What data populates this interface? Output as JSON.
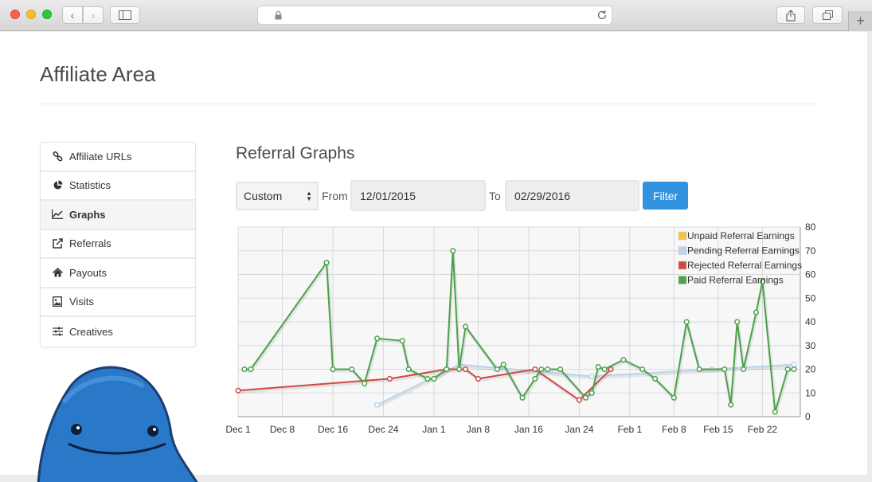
{
  "page": {
    "title": "Affiliate Area",
    "section_title": "Referral Graphs"
  },
  "nav": {
    "items": [
      {
        "label": "Affiliate URLs",
        "icon": "link-icon"
      },
      {
        "label": "Statistics",
        "icon": "pie-chart-icon"
      },
      {
        "label": "Graphs",
        "icon": "line-chart-icon",
        "active": true
      },
      {
        "label": "Referrals",
        "icon": "external-link-icon"
      },
      {
        "label": "Payouts",
        "icon": "home-icon"
      },
      {
        "label": "Visits",
        "icon": "image-icon"
      },
      {
        "label": "Creatives",
        "icon": "sliders-icon"
      }
    ]
  },
  "filter": {
    "range_value": "Custom",
    "from_label": "From",
    "from_value": "12/01/2015",
    "to_label": "To",
    "to_value": "02/29/2016",
    "button_label": "Filter",
    "button_color": "#3192e0"
  },
  "chart_data": {
    "type": "line",
    "x_ticks": [
      "Dec 1",
      "Dec 8",
      "Dec 16",
      "Dec 24",
      "Jan 1",
      "Jan 8",
      "Jan 16",
      "Jan 24",
      "Feb 1",
      "Feb 8",
      "Feb 15",
      "Feb 22"
    ],
    "x_tick_days": [
      0,
      7,
      15,
      23,
      31,
      38,
      46,
      54,
      62,
      69,
      76,
      83
    ],
    "x_range_days": [
      0,
      89
    ],
    "ylim": [
      0,
      80
    ],
    "y_ticks": [
      0,
      10,
      20,
      30,
      40,
      50,
      60,
      70,
      80
    ],
    "y_axis_position": "right",
    "grid": true,
    "legend_position": "top-right",
    "series": [
      {
        "name": "Unpaid Referral Earnings",
        "color": "#f0c24a",
        "points": []
      },
      {
        "name": "Pending Referral Earnings",
        "color": "#b8d4ee",
        "points": [
          [
            22,
            5
          ],
          [
            35,
            22
          ],
          [
            56,
            17
          ],
          [
            75,
            20
          ],
          [
            88,
            22
          ]
        ]
      },
      {
        "name": "Rejected Referral Earnings",
        "color": "#cd4a45",
        "points": [
          [
            0,
            11
          ],
          [
            24,
            16
          ],
          [
            33,
            20
          ],
          [
            36,
            20
          ],
          [
            38,
            16
          ],
          [
            47,
            20
          ],
          [
            54,
            7
          ],
          [
            59,
            20
          ]
        ]
      },
      {
        "name": "Paid Referral Earnings",
        "color": "#4aa24a",
        "points": [
          [
            1,
            20
          ],
          [
            2,
            20
          ],
          [
            14,
            65
          ],
          [
            15,
            20
          ],
          [
            18,
            20
          ],
          [
            20,
            14
          ],
          [
            22,
            33
          ],
          [
            26,
            32
          ],
          [
            27,
            20
          ],
          [
            30,
            16
          ],
          [
            31,
            16
          ],
          [
            33,
            20
          ],
          [
            34,
            70
          ],
          [
            35,
            20
          ],
          [
            36,
            38
          ],
          [
            41,
            20
          ],
          [
            42,
            22
          ],
          [
            45,
            8
          ],
          [
            47,
            16
          ],
          [
            48,
            20
          ],
          [
            49,
            20
          ],
          [
            51,
            20
          ],
          [
            55,
            8
          ],
          [
            56,
            10
          ],
          [
            57,
            21
          ],
          [
            58,
            20
          ],
          [
            61,
            24
          ],
          [
            64,
            20
          ],
          [
            66,
            16
          ],
          [
            69,
            8
          ],
          [
            71,
            40
          ],
          [
            73,
            20
          ],
          [
            77,
            20
          ],
          [
            78,
            5
          ],
          [
            79,
            40
          ],
          [
            80,
            20
          ],
          [
            82,
            44
          ],
          [
            83,
            57
          ],
          [
            85,
            2
          ],
          [
            87,
            20
          ],
          [
            88,
            20
          ]
        ]
      }
    ]
  }
}
